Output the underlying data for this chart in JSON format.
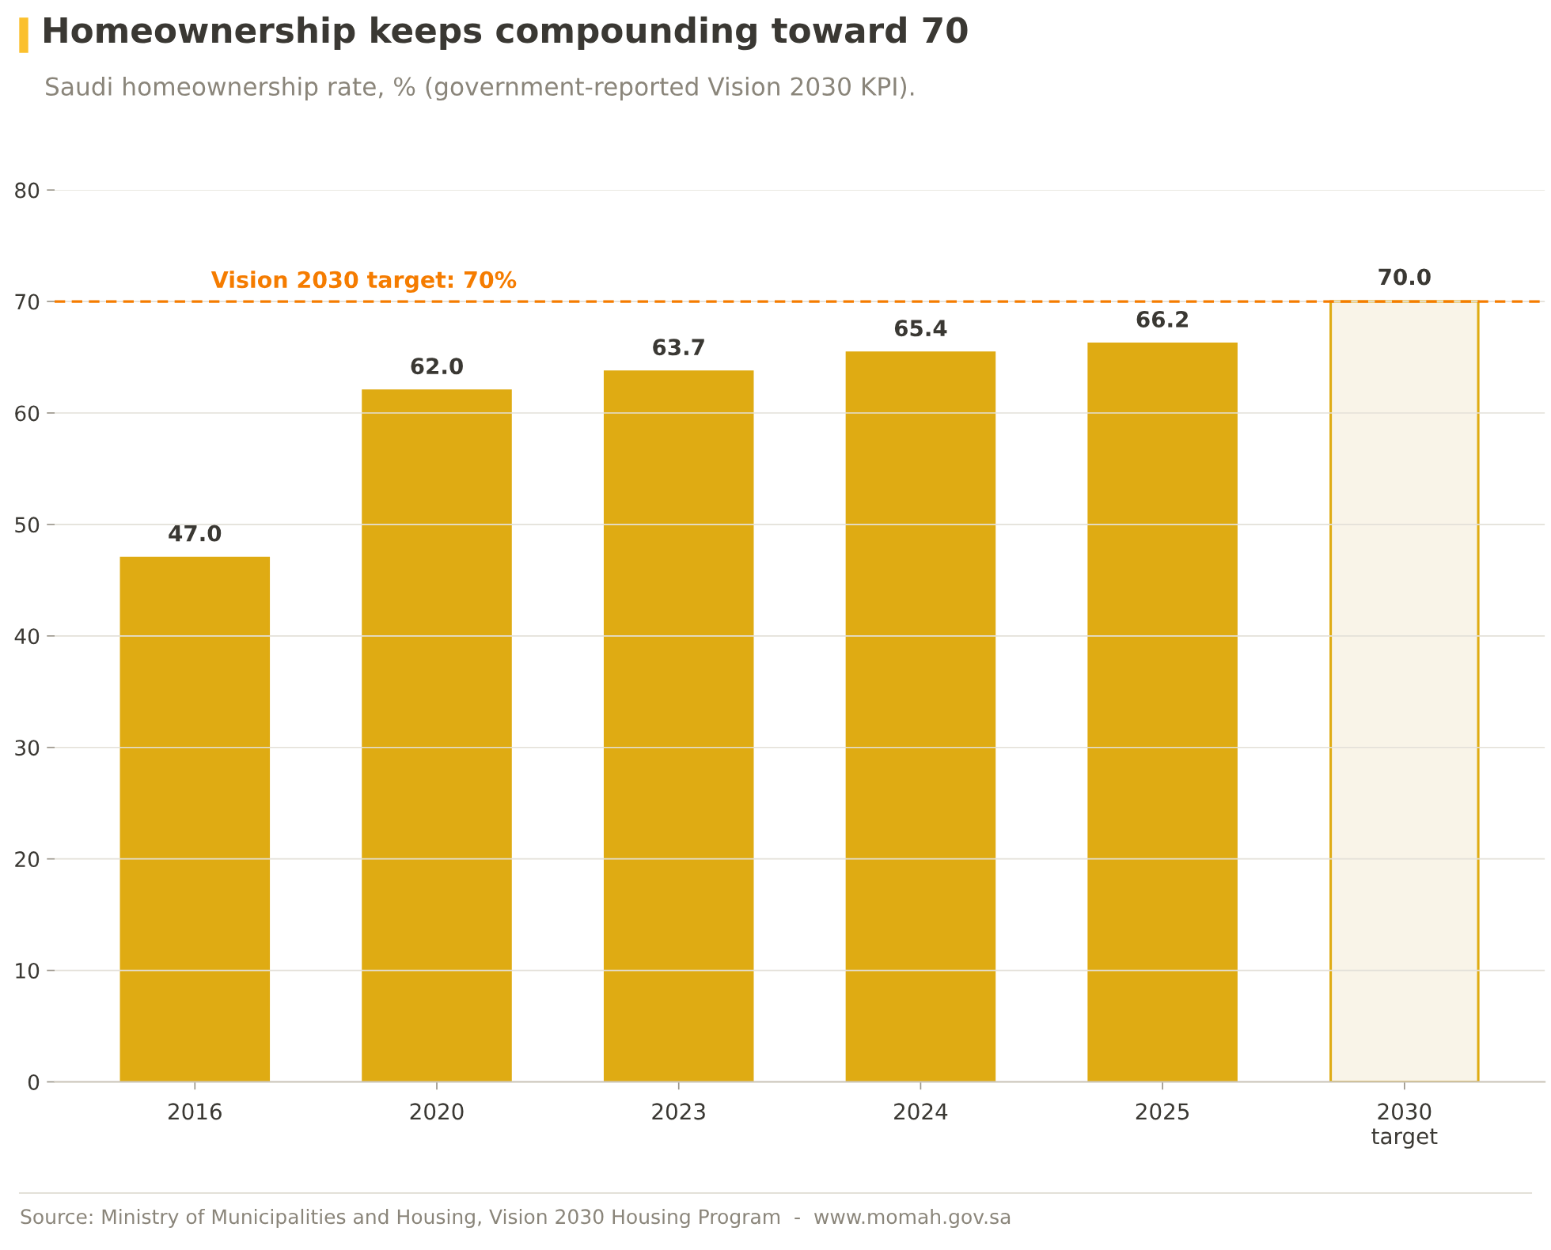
{
  "chart_data": {
    "type": "bar",
    "title": "Homeownership keeps compounding toward 70",
    "subtitle": "Saudi homeownership rate, % (government-reported Vision 2030 KPI).",
    "categories": [
      "2016",
      "2020",
      "2023",
      "2024",
      "2025",
      "2030\ntarget"
    ],
    "values": [
      47.0,
      62.0,
      63.7,
      65.4,
      66.2,
      70.0
    ],
    "value_labels": [
      "47.0",
      "62.0",
      "63.7",
      "65.4",
      "66.2",
      "70.0"
    ],
    "colors": [
      "#dfab13",
      "#dfab13",
      "#dfab13",
      "#dfab13",
      "#dfab13",
      "#f9f4e8"
    ],
    "ylim": [
      0,
      80
    ],
    "yticks": [
      0,
      10,
      20,
      30,
      40,
      50,
      60,
      70,
      80
    ],
    "grid": "y",
    "ref_lines": [
      {
        "axis": "y",
        "value": 70,
        "label": "Vision 2030 target: 70%",
        "color": "#f57c00",
        "line_style": "dashed"
      }
    ],
    "annotations": [
      "Source: Ministry of Municipalities and Housing, Vision 2030 Housing Program  -  www.momah.gov.sa"
    ]
  }
}
